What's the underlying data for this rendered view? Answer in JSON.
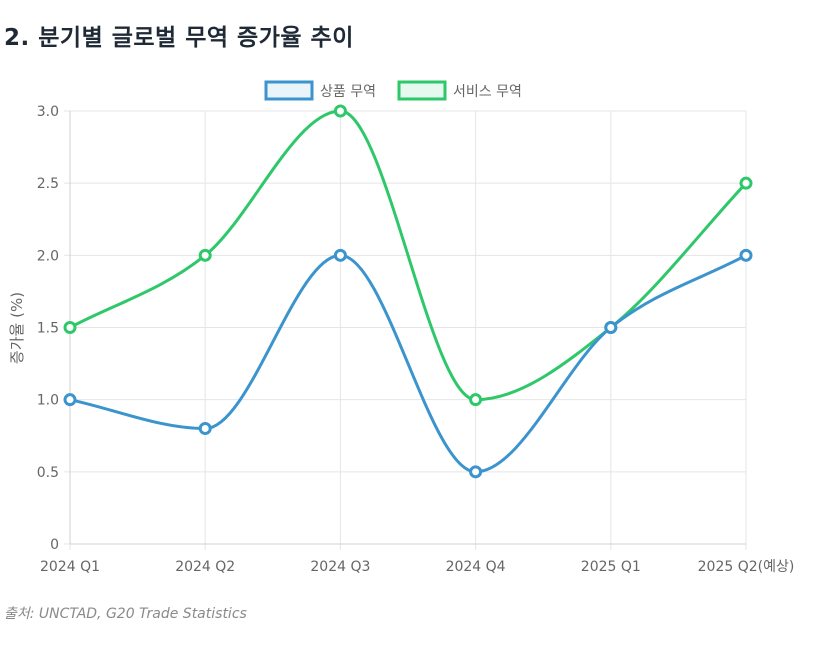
{
  "page": {
    "title": "2. 분기별 글로벌 무역 증가율 추이",
    "source": "출처: UNCTAD, G20 Trade Statistics"
  },
  "colors": {
    "goods": "#3b94ce",
    "services": "#2ec86a",
    "grid": "#e5e5e5",
    "text": "#666666"
  },
  "chart_data": {
    "type": "line",
    "categories": [
      "2024 Q1",
      "2024 Q2",
      "2024 Q3",
      "2024 Q4",
      "2025 Q1",
      "2025 Q2(예상)"
    ],
    "series": [
      {
        "name": "상품 무역",
        "values": [
          1.0,
          0.8,
          2.0,
          0.5,
          1.5,
          2.0
        ]
      },
      {
        "name": "서비스 무역",
        "values": [
          1.5,
          2.0,
          3.0,
          1.0,
          1.5,
          2.5
        ]
      }
    ],
    "ylabel": "증가율 (%)",
    "ylim": [
      0,
      3.0
    ],
    "yticks": [
      "0",
      "0.5",
      "1.0",
      "1.5",
      "2.0",
      "2.5",
      "3.0"
    ],
    "grid": true,
    "legend": "top-center"
  }
}
